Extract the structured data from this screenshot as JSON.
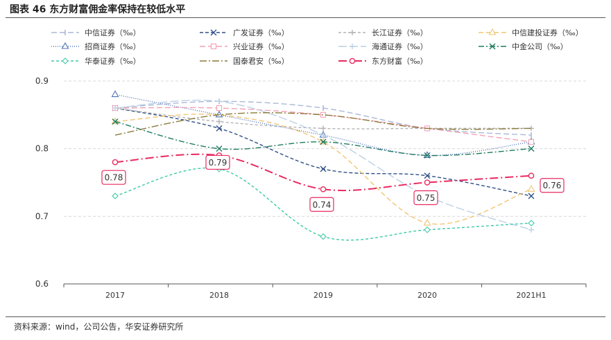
{
  "figure": {
    "title": "图表 46 东方财富佣金率保持在较低水平",
    "source": "资料来源：wind，公司公告，华安证券研究所"
  },
  "chart_data": {
    "type": "line",
    "categories": [
      "2017",
      "2018",
      "2019",
      "2020",
      "2021H1"
    ],
    "ylim": [
      0.6,
      0.9
    ],
    "yticks": [
      "0.6",
      "0.7",
      "0.8",
      "0.9"
    ],
    "grid": "horizontal",
    "legend_position": "top",
    "series": [
      {
        "name": "中信证券（‰）",
        "values": [
          0.86,
          0.87,
          0.86,
          0.83,
          0.82
        ],
        "color": "#a9b8d6",
        "dash": "8,4",
        "marker": "bar",
        "highlight": false
      },
      {
        "name": "广发证券（‰）",
        "values": [
          0.86,
          0.83,
          0.77,
          0.76,
          0.73
        ],
        "color": "#2f4f86",
        "dash": "5,3",
        "marker": "x",
        "highlight": false
      },
      {
        "name": "长江证券（‰）",
        "values": [
          0.86,
          0.84,
          0.83,
          0.83,
          0.83
        ],
        "color": "#b3b3b3",
        "dash": "4,3",
        "marker": "plus",
        "highlight": false
      },
      {
        "name": "中信建投证券（‰）",
        "values": [
          0.84,
          0.85,
          0.81,
          0.69,
          0.74
        ],
        "color": "#f2c572",
        "dash": "7,4",
        "marker": "triangle",
        "highlight": false
      },
      {
        "name": "招商证券（‰）",
        "values": [
          0.88,
          0.85,
          0.82,
          0.79,
          0.81
        ],
        "color": "#4f72b8",
        "dash": "1,2",
        "marker": "triangle",
        "highlight": false
      },
      {
        "name": "兴业证券（‰）",
        "values": [
          0.86,
          0.86,
          0.85,
          0.83,
          0.81
        ],
        "color": "#f2a0b4",
        "dash": "8,4",
        "marker": "square",
        "highlight": false
      },
      {
        "name": "海通证券（‰）",
        "values": [
          0.86,
          0.87,
          0.82,
          0.73,
          0.68
        ],
        "color": "#bcd0e6",
        "dash": "12,4",
        "marker": "plus",
        "highlight": false
      },
      {
        "name": "中金公司（‰）",
        "values": [
          0.84,
          0.8,
          0.81,
          0.79,
          0.8
        ],
        "color": "#1e7a5e",
        "dash": "8,3,2,3",
        "marker": "x",
        "highlight": false
      },
      {
        "name": "华泰证券（‰）",
        "values": [
          0.73,
          0.77,
          0.67,
          0.68,
          0.69
        ],
        "color": "#3cc9a6",
        "dash": "4,3",
        "marker": "diamond",
        "highlight": false
      },
      {
        "name": "国泰君安（‰）",
        "values": [
          0.82,
          0.85,
          0.85,
          0.83,
          0.83
        ],
        "color": "#8a7a3a",
        "dash": "10,3,2,3",
        "marker": "none",
        "highlight": false
      },
      {
        "name": "东方财富（‰）",
        "values": [
          0.78,
          0.79,
          0.74,
          0.75,
          0.76
        ],
        "color": "#e8295f",
        "dash": "12,4,2,4",
        "marker": "circle",
        "highlight": true,
        "data_labels": [
          "0.78",
          "0.79",
          "0.74",
          "0.75",
          "0.76"
        ]
      }
    ]
  }
}
